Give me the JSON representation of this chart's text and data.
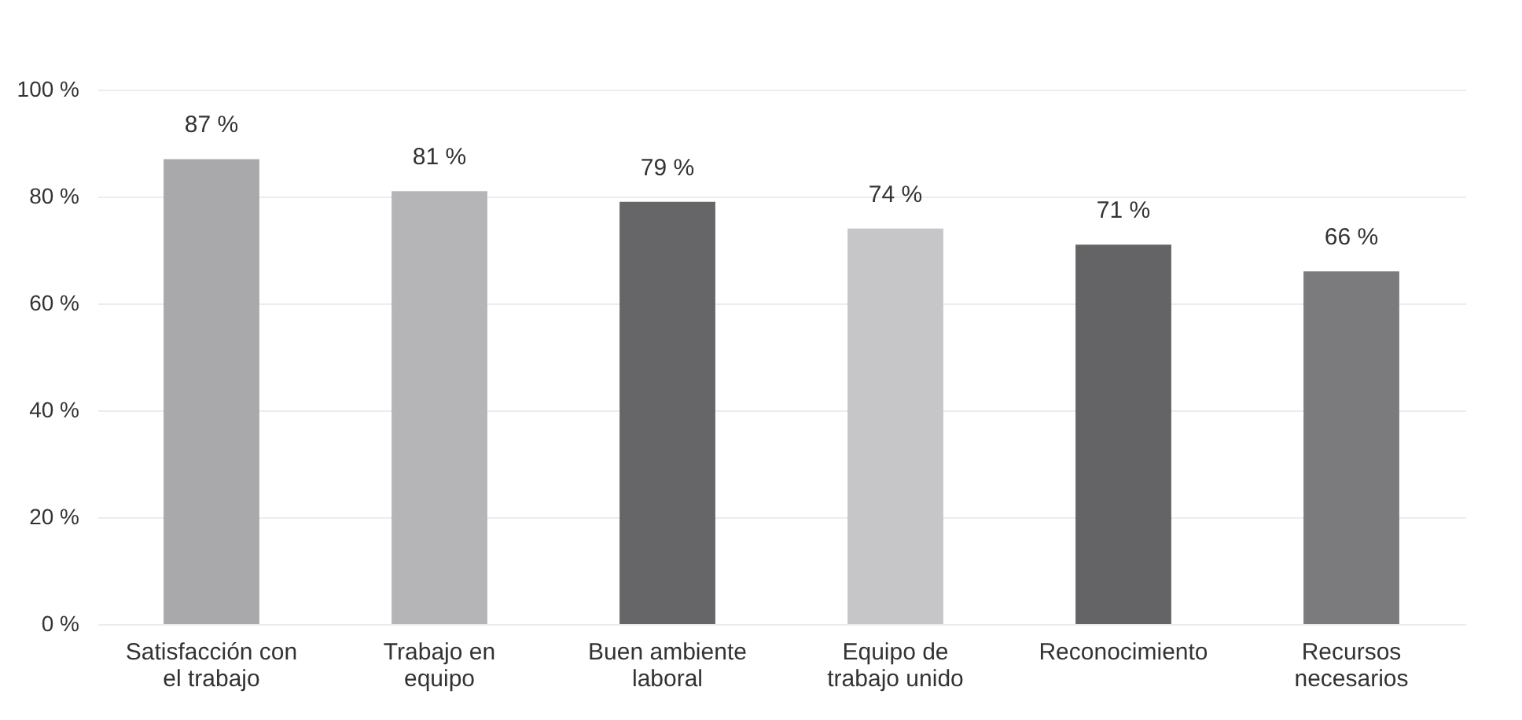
{
  "chart_data": {
    "type": "bar",
    "categories": [
      "Satisfacción con el trabajo",
      "Trabajo en equipo",
      "Buen ambiente laboral",
      "Equipo de trabajo unido",
      "Reconocimiento",
      "Recursos necesarios"
    ],
    "values": [
      87,
      81,
      79,
      74,
      71,
      66
    ],
    "colors": [
      "#a9a9ab",
      "#b5b5b7",
      "#666668",
      "#c6c6c8",
      "#646466",
      "#7b7b7d"
    ],
    "value_labels": [
      "87 %",
      "81 %",
      "79 %",
      "74 %",
      "71 %",
      "66 %"
    ],
    "ylim": [
      0,
      100
    ],
    "yticks": [
      {
        "value": 0,
        "label": "0 %"
      },
      {
        "value": 20,
        "label": "20 %"
      },
      {
        "value": 40,
        "label": "40 %"
      },
      {
        "value": 60,
        "label": "60 %"
      },
      {
        "value": 80,
        "label": "80 %"
      },
      {
        "value": 100,
        "label": "100 %"
      }
    ],
    "grid": "y"
  }
}
